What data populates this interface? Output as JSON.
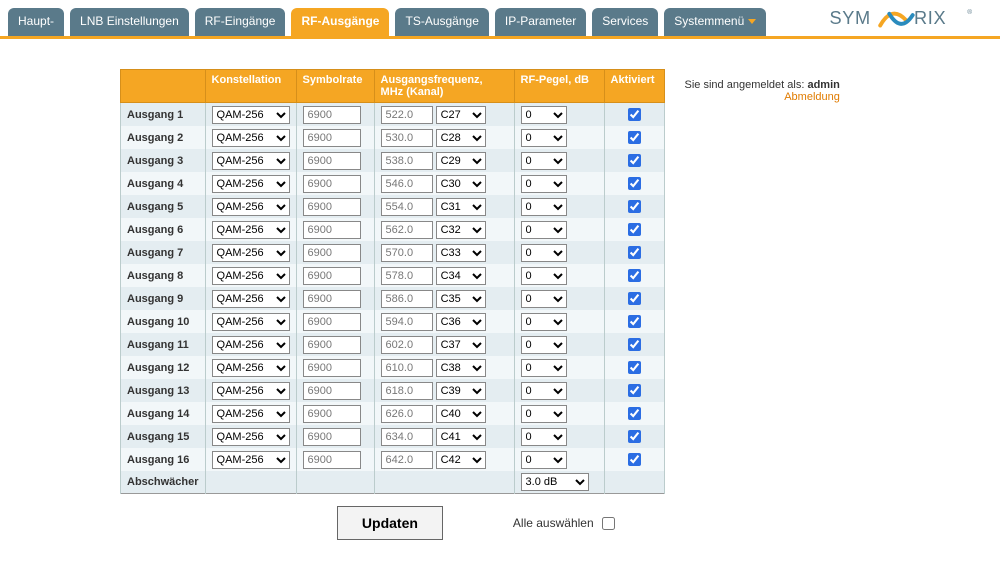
{
  "nav": {
    "tabs": [
      {
        "label": "Haupt-",
        "active": false
      },
      {
        "label": "LNB Einstellungen",
        "active": false
      },
      {
        "label": "RF-Eingänge",
        "active": false
      },
      {
        "label": "RF-Ausgänge",
        "active": true
      },
      {
        "label": "TS-Ausgänge",
        "active": false
      },
      {
        "label": "IP-Parameter",
        "active": false
      },
      {
        "label": "Services",
        "active": false
      }
    ],
    "sysmenu_label": "Systemmenü"
  },
  "logo": {
    "text_left": "SYM",
    "text_right": "RIX",
    "color_left": "#5a7a8a",
    "color_right": "#5a7a8a",
    "swoosh_a": "#f5a623",
    "swoosh_b": "#2a8bbd"
  },
  "side": {
    "login_prefix": "Sie sind angemeldet als: ",
    "user": "admin",
    "logout": "Abmeldung"
  },
  "table": {
    "headers": {
      "blank": "",
      "konst": "Konstellation",
      "sym": "Symbolrate",
      "freq": "Ausgangsfrequenz, MHz (Kanal)",
      "pegel": "RF-Pegel, dB",
      "akt": "Aktiviert"
    },
    "konst_option": "QAM-256",
    "pegel_option": "0",
    "rows": [
      {
        "label": "Ausgang 1",
        "sym": "6900",
        "freq": "522.0",
        "chan": "C27",
        "checked": true
      },
      {
        "label": "Ausgang 2",
        "sym": "6900",
        "freq": "530.0",
        "chan": "C28",
        "checked": true
      },
      {
        "label": "Ausgang 3",
        "sym": "6900",
        "freq": "538.0",
        "chan": "C29",
        "checked": true
      },
      {
        "label": "Ausgang 4",
        "sym": "6900",
        "freq": "546.0",
        "chan": "C30",
        "checked": true
      },
      {
        "label": "Ausgang 5",
        "sym": "6900",
        "freq": "554.0",
        "chan": "C31",
        "checked": true
      },
      {
        "label": "Ausgang 6",
        "sym": "6900",
        "freq": "562.0",
        "chan": "C32",
        "checked": true
      },
      {
        "label": "Ausgang 7",
        "sym": "6900",
        "freq": "570.0",
        "chan": "C33",
        "checked": true
      },
      {
        "label": "Ausgang 8",
        "sym": "6900",
        "freq": "578.0",
        "chan": "C34",
        "checked": true
      },
      {
        "label": "Ausgang 9",
        "sym": "6900",
        "freq": "586.0",
        "chan": "C35",
        "checked": true
      },
      {
        "label": "Ausgang 10",
        "sym": "6900",
        "freq": "594.0",
        "chan": "C36",
        "checked": true
      },
      {
        "label": "Ausgang 11",
        "sym": "6900",
        "freq": "602.0",
        "chan": "C37",
        "checked": true
      },
      {
        "label": "Ausgang 12",
        "sym": "6900",
        "freq": "610.0",
        "chan": "C38",
        "checked": true
      },
      {
        "label": "Ausgang 13",
        "sym": "6900",
        "freq": "618.0",
        "chan": "C39",
        "checked": true
      },
      {
        "label": "Ausgang 14",
        "sym": "6900",
        "freq": "626.0",
        "chan": "C40",
        "checked": true
      },
      {
        "label": "Ausgang 15",
        "sym": "6900",
        "freq": "634.0",
        "chan": "C41",
        "checked": true
      },
      {
        "label": "Ausgang 16",
        "sym": "6900",
        "freq": "642.0",
        "chan": "C42",
        "checked": true
      }
    ],
    "atten_label": "Abschwächer",
    "atten_value": "3.0 dB"
  },
  "buttons": {
    "update": "Updaten",
    "select_all": "Alle auswählen"
  },
  "colors": {
    "accent": "#f5a623",
    "tab_bg": "#5a7a8a",
    "row_even": "#e4edf1",
    "row_odd": "#f2f7f9"
  }
}
